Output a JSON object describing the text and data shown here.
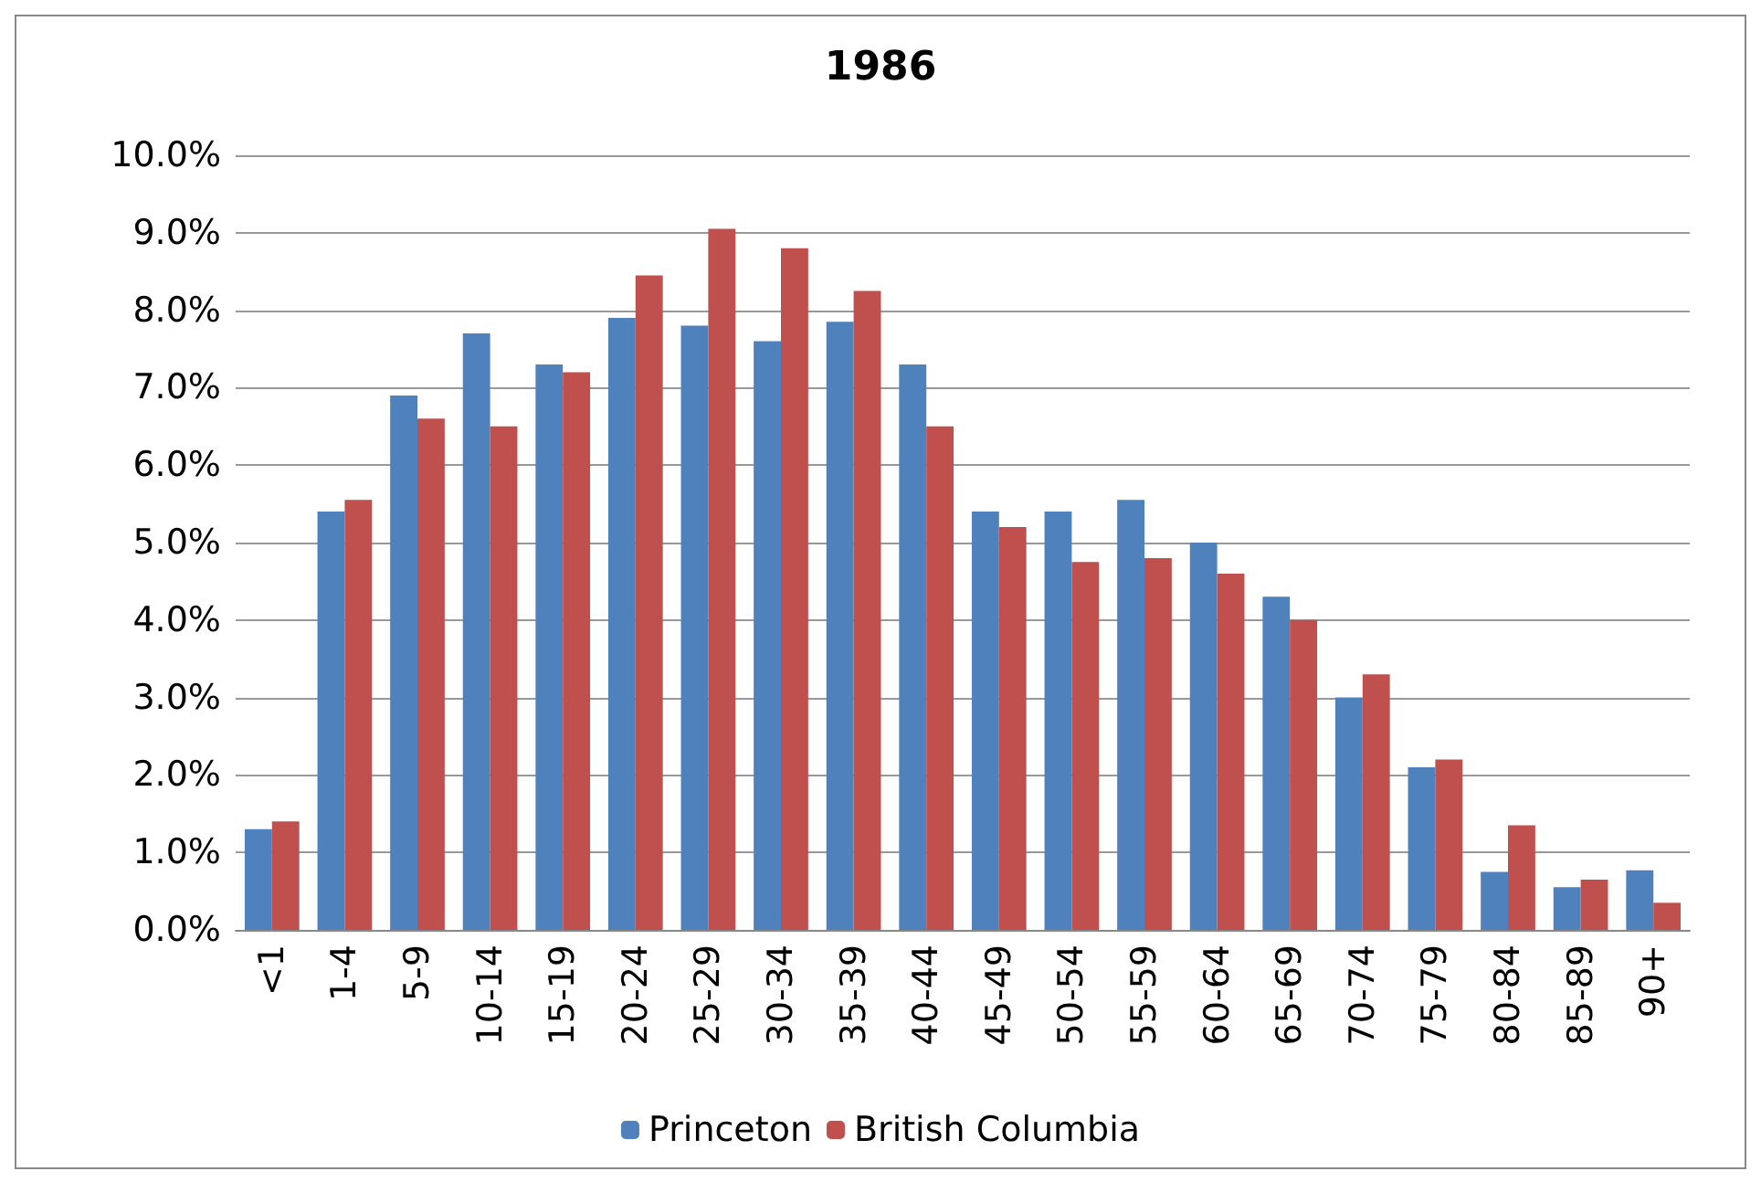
{
  "chart_data": {
    "type": "bar",
    "title": "1986",
    "categories": [
      "<1",
      "1-4",
      "5-9",
      "10-14",
      "15-19",
      "20-24",
      "25-29",
      "30-34",
      "35-39",
      "40-44",
      "45-49",
      "50-54",
      "55-59",
      "60-64",
      "65-69",
      "70-74",
      "75-79",
      "80-84",
      "85-89",
      "90+"
    ],
    "series": [
      {
        "name": "Princeton",
        "color": "#4f81bd",
        "values": [
          1.3,
          5.4,
          6.9,
          7.7,
          7.3,
          7.9,
          7.8,
          7.6,
          7.85,
          7.3,
          5.4,
          5.4,
          5.55,
          5.0,
          4.3,
          3.0,
          2.1,
          0.75,
          0.55,
          0.77
        ]
      },
      {
        "name": "British Columbia",
        "color": "#c0504d",
        "values": [
          1.4,
          5.55,
          6.6,
          6.5,
          7.2,
          8.45,
          9.05,
          8.8,
          8.25,
          6.5,
          5.2,
          4.75,
          4.8,
          4.6,
          4.0,
          3.3,
          2.2,
          1.35,
          0.65,
          0.35
        ]
      }
    ],
    "ylim": [
      0,
      10
    ],
    "yticks": [
      {
        "value": 0,
        "label": "0.0%"
      },
      {
        "value": 1,
        "label": "1.0%"
      },
      {
        "value": 2,
        "label": "2.0%"
      },
      {
        "value": 3,
        "label": "3.0%"
      },
      {
        "value": 4,
        "label": "4.0%"
      },
      {
        "value": 5,
        "label": "5.0%"
      },
      {
        "value": 6,
        "label": "6.0%"
      },
      {
        "value": 7,
        "label": "7.0%"
      },
      {
        "value": 8,
        "label": "8.0%"
      },
      {
        "value": 9,
        "label": "9.0%"
      },
      {
        "value": 10,
        "label": "10.0%"
      }
    ],
    "grid": "y",
    "legend": "bottom"
  }
}
